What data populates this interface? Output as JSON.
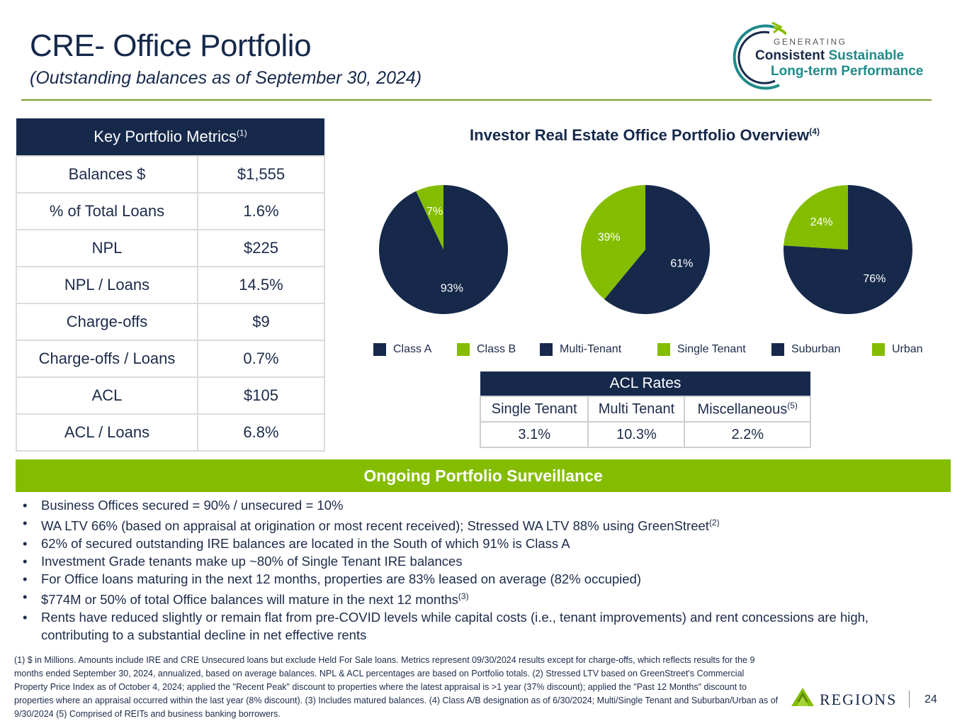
{
  "header": {
    "title": "CRE- Office Portfolio",
    "subtitle": "(Outstanding balances as of September 30, 2024)"
  },
  "logo": {
    "generating": "GENERATING",
    "consistent": "Consistent",
    "sustainable": "Sustainable",
    "long_term": "Long-term Performance"
  },
  "metrics": {
    "heading": "Key Portfolio Metrics",
    "heading_note": "(1)",
    "rows": [
      {
        "label": "Balances $",
        "value": "$1,555"
      },
      {
        "label": "% of Total Loans",
        "value": "1.6%"
      },
      {
        "label": "NPL",
        "value": "$225"
      },
      {
        "label": "NPL / Loans",
        "value": "14.5%"
      },
      {
        "label": "Charge-offs",
        "value": "$9"
      },
      {
        "label": "Charge-offs / Loans",
        "value": "0.7%"
      },
      {
        "label": "ACL",
        "value": "$105"
      },
      {
        "label": "ACL / Loans",
        "value": "6.8%"
      }
    ]
  },
  "chart_data": {
    "type": "pie",
    "title": "Investor Real Estate Office Portfolio Overview",
    "title_note": "(4)",
    "colors": {
      "navy": "#16294b",
      "green": "#84bd00"
    },
    "pies": [
      {
        "categories": [
          "Class A",
          "Class B"
        ],
        "values": [
          93,
          7
        ],
        "labels": [
          "93%",
          "7%"
        ]
      },
      {
        "categories": [
          "Multi-Tenant",
          "Single Tenant"
        ],
        "values": [
          61,
          39
        ],
        "labels": [
          "61%",
          "39%"
        ]
      },
      {
        "categories": [
          "Suburban",
          "Urban"
        ],
        "values": [
          76,
          24
        ],
        "labels": [
          "76%",
          "24%"
        ]
      }
    ],
    "legend": [
      "Class A",
      "Class B",
      "Multi-Tenant",
      "Single Tenant",
      "Suburban",
      "Urban"
    ]
  },
  "acl_rates": {
    "heading": "ACL Rates",
    "columns": [
      "Single Tenant",
      "Multi Tenant",
      "Miscellaneous"
    ],
    "misc_note": "(5)",
    "values": [
      "3.1%",
      "10.3%",
      "2.2%"
    ]
  },
  "surveillance": {
    "heading": "Ongoing Portfolio Surveillance",
    "bullets": [
      "Business Offices secured = 90% / unsecured = 10%",
      "WA LTV 66% (based on appraisal at origination or most recent received); Stressed WA LTV 88% using GreenStreet",
      "62% of secured outstanding IRE balances are located in the South of which 91% is Class A",
      "Investment Grade tenants make up ~80% of Single Tenant IRE balances",
      "For Office loans maturing in the next 12 months, properties are 83% leased on average (82% occupied)",
      "$774M or 50% of total Office balances will mature in the next 12 months",
      "Rents have reduced slightly or remain flat from pre-COVID levels while capital costs (i.e., tenant improvements) and rent concessions are high, contributing to a substantial decline in net effective rents"
    ],
    "note_2": "(2)",
    "note_3": "(3)"
  },
  "footnote": "(1) $ in Millions. Amounts include IRE and CRE Unsecured loans but exclude Held For Sale loans. Metrics represent 09/30/2024 results except for charge-offs, which reflects results for the 9 months ended September 30, 2024, annualized,  based on average balances.  NPL & ACL percentages are based on Portfolio totals.  (2) Stressed LTV based on GreenStreet's Commercial Property Price Index as of October 4, 2024; applied the \"Recent Peak\" discount to properties where the latest appraisal is >1 year (37% discount); applied the \"Past 12 Months\" discount to properties where an appraisal occurred within the last year (8% discount). (3) Includes matured balances. (4) Class A/B designation as of 6/30/2024; Multi/Single Tenant and Suburban/Urban as of 9/30/2024 (5) Comprised of REITs and business banking borrowers.",
  "brand": {
    "name": "REGIONS",
    "page": "24"
  }
}
